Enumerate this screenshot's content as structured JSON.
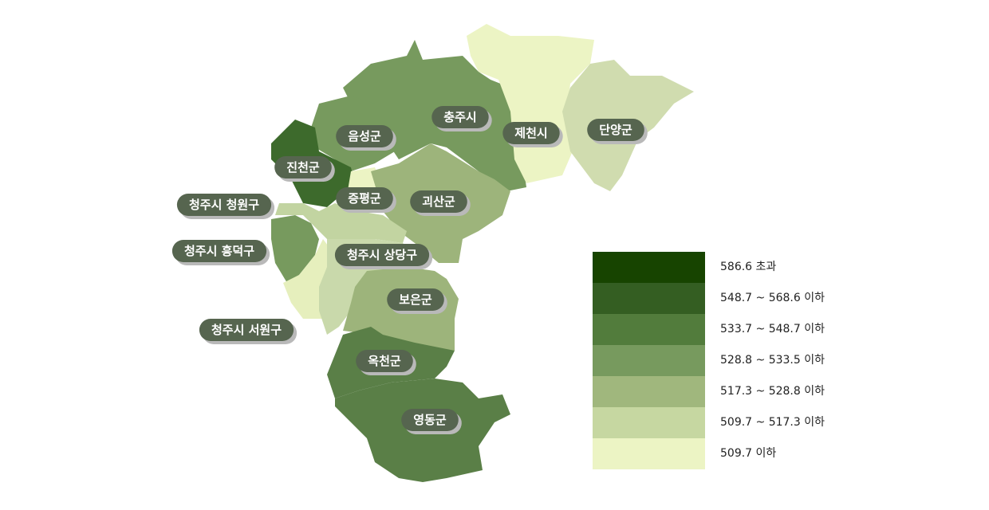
{
  "regions": [
    {
      "name": "충주시",
      "color": "#779a5e"
    },
    {
      "name": "음성군",
      "color": "#779a5e"
    },
    {
      "name": "제천시",
      "color": "#ecf4c4"
    },
    {
      "name": "단양군",
      "color": "#d0dcaf"
    },
    {
      "name": "진천군",
      "color": "#3d6a2c"
    },
    {
      "name": "증평군",
      "color": "#ecf4c4"
    },
    {
      "name": "괴산군",
      "color": "#9db47b"
    },
    {
      "name": "청주시 청원구",
      "color": "#c2d4a1"
    },
    {
      "name": "청주시 흥덕구",
      "color": "#779a5e"
    },
    {
      "name": "청주시 서원구",
      "color": "#e6efbd"
    },
    {
      "name": "청주시 상당구",
      "color": "#c9d9ab"
    },
    {
      "name": "보은군",
      "color": "#9db47b"
    },
    {
      "name": "옥천군",
      "color": "#5a7f47"
    },
    {
      "name": "영동군",
      "color": "#5a7f47"
    }
  ],
  "legend": {
    "items": [
      {
        "label": "586.6 초과",
        "color": "#174400"
      },
      {
        "label": "548.7 ~ 568.6 이하",
        "color": "#345e22"
      },
      {
        "label": "533.7 ~ 548.7 이하",
        "color": "#527c3c"
      },
      {
        "label": "528.8 ~ 533.5 이하",
        "color": "#779a5e"
      },
      {
        "label": "517.3 ~ 528.8 이하",
        "color": "#a0b77d"
      },
      {
        "label": "509.7 ~ 517.3 이하",
        "color": "#c6d7a1"
      },
      {
        "label": "509.7 이하",
        "color": "#ecf4c4"
      }
    ]
  }
}
